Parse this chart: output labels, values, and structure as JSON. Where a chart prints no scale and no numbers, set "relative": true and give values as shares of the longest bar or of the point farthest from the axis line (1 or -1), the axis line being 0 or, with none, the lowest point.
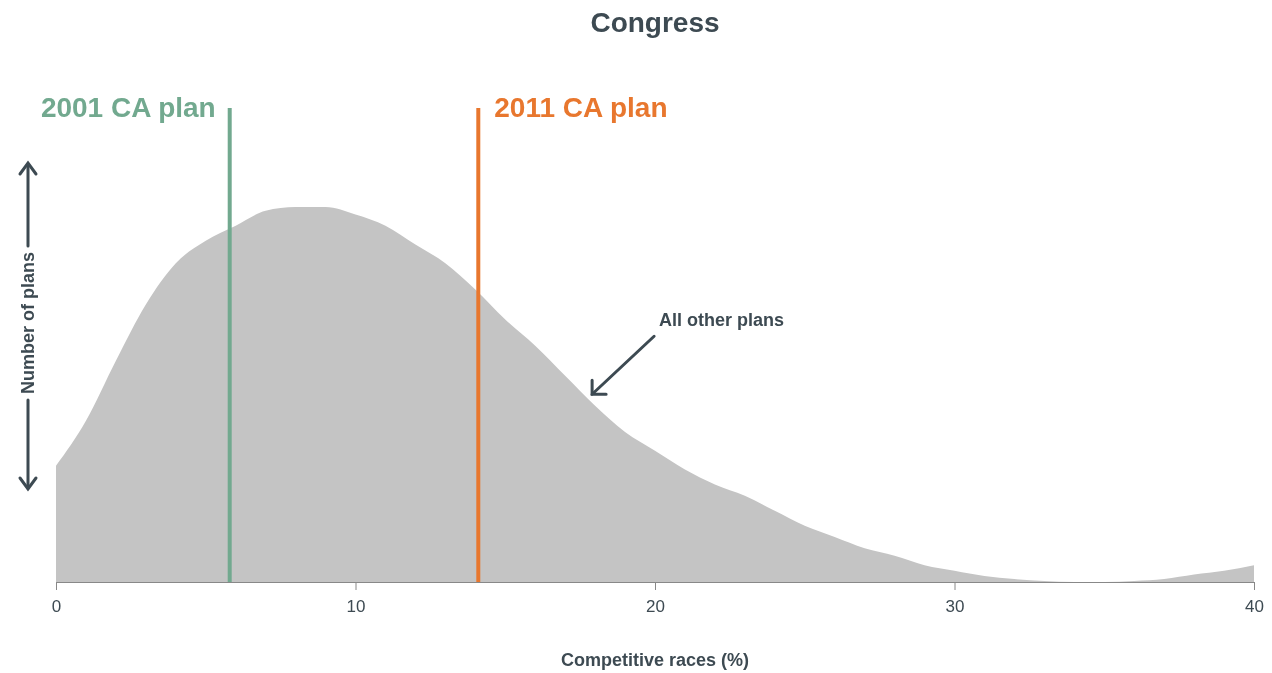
{
  "chart_data": {
    "type": "area",
    "title": "Congress",
    "xlabel": "Competitive races (%)",
    "ylabel": "Number of plans",
    "relative": true,
    "xlim": [
      0,
      40
    ],
    "xticks": [
      0,
      10,
      20,
      30,
      40
    ],
    "x": [
      0,
      1,
      2,
      3,
      4,
      5,
      6,
      7,
      8,
      9,
      10,
      11,
      12,
      13,
      14,
      15,
      16,
      17,
      18,
      19,
      20,
      21,
      22,
      23,
      24,
      25,
      26,
      27,
      28,
      29,
      30,
      31,
      32,
      33,
      34,
      35,
      36,
      37,
      38,
      39,
      40
    ],
    "series": [
      {
        "color": "#c4c4c4",
        "values": [
          0.31,
          0.43,
          0.59,
          0.74,
          0.85,
          0.91,
          0.95,
          0.99,
          1.0,
          1.0,
          0.98,
          0.95,
          0.9,
          0.85,
          0.78,
          0.7,
          0.63,
          0.55,
          0.47,
          0.4,
          0.35,
          0.3,
          0.26,
          0.23,
          0.19,
          0.15,
          0.12,
          0.09,
          0.07,
          0.045,
          0.03,
          0.016,
          0.008,
          0.003,
          0,
          0,
          0.003,
          0.008,
          0.02,
          0.03,
          0.045
        ]
      }
    ],
    "ref_lines": [
      {
        "axis": "x",
        "value": 5.8,
        "label": "2001 CA plan",
        "color": "#72a98f"
      },
      {
        "axis": "x",
        "value": 14.1,
        "label": "2011 CA plan",
        "color": "#e8772e"
      }
    ],
    "annotations": [
      {
        "text": "All other plans",
        "x": 17.8,
        "y": 0.49
      }
    ],
    "grid": false
  }
}
